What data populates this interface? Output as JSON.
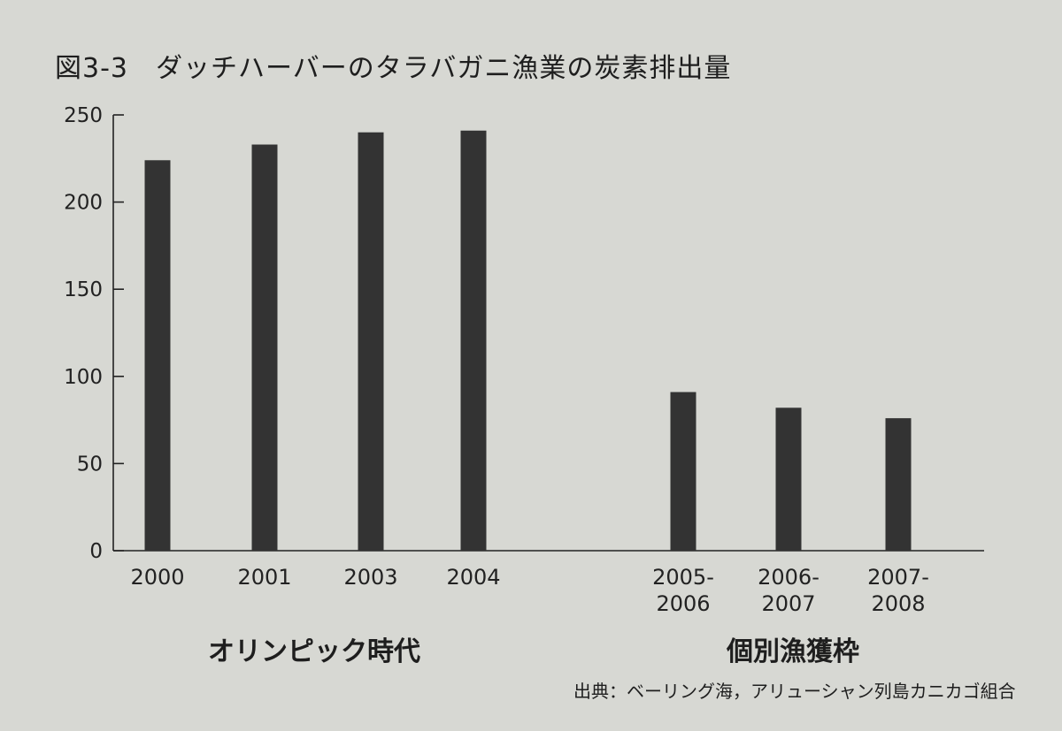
{
  "chart_data": {
    "type": "bar",
    "title": "図3-3　ダッチハーバーのタラバガニ漁業の炭素排出量",
    "categories": [
      "2000",
      "2001",
      "2003",
      "2004",
      "2005-2006",
      "2006-2007",
      "2007-2008"
    ],
    "category_lines": [
      [
        "2000"
      ],
      [
        "2001"
      ],
      [
        "2003"
      ],
      [
        "2004"
      ],
      [
        "2005-",
        "2006"
      ],
      [
        "2006-",
        "2007"
      ],
      [
        "2007-",
        "2008"
      ]
    ],
    "values": [
      224,
      233,
      240,
      241,
      91,
      82,
      76
    ],
    "ylim": [
      0,
      250
    ],
    "yticks": [
      0,
      50,
      100,
      150,
      200,
      250
    ],
    "xlabel": "",
    "ylabel": "",
    "grid": false,
    "bar_color": "#333333",
    "groups": [
      {
        "label": "オリンピック時代",
        "categories": [
          "2000",
          "2001",
          "2003",
          "2004"
        ]
      },
      {
        "label": "個別漁獲枠",
        "categories": [
          "2005-2006",
          "2006-2007",
          "2007-2008"
        ]
      }
    ],
    "source": "出典：ベーリング海，アリューシャン列島カニカゴ組合"
  }
}
